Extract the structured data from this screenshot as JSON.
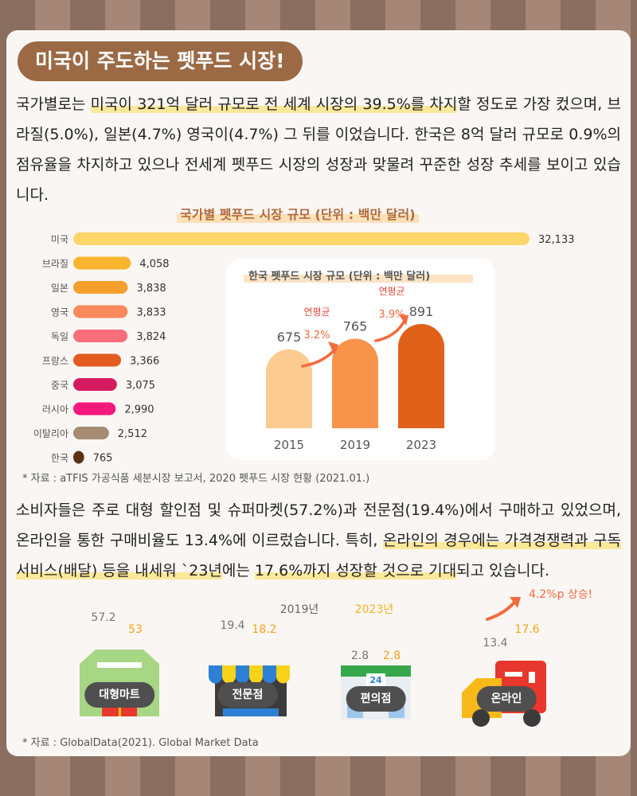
{
  "headline": "미국이 주도하는 펫푸드 시장!",
  "intro": {
    "s1": "국가별로는 ",
    "h1": "미국이 321억 달러 규모로 전 세계 시장의 39.5%를 차지",
    "s2": "할 정도로 가장 컸으며, 브라질(5.0%), 일본(4.7%) 영국이(4.7%) 그 뒤를 이었습니다. 한국은 8억 달러 규모로 0.9%의 점유율을 차지하고 있으나 전세계 펫푸드 시장의 성장과 맞물려 꾸준한 성장 추세를 보이고 있습니다."
  },
  "chart_data": [
    {
      "type": "bar",
      "orientation": "horizontal",
      "title": "국가별 펫푸드 시장 규모 (단위 : 백만 달러)",
      "categories": [
        "미국",
        "브라질",
        "일본",
        "영국",
        "독일",
        "프랑스",
        "중국",
        "러시아",
        "이탈리아",
        "한국"
      ],
      "values": [
        32133,
        4058,
        3838,
        3833,
        3824,
        3366,
        3075,
        2990,
        2512,
        765
      ],
      "value_labels": [
        "32,133",
        "4,058",
        "3,838",
        "3,833",
        "3,824",
        "3,366",
        "3,075",
        "2,990",
        "2,512",
        "765"
      ],
      "colors": [
        "#fdd56b",
        "#f9b52e",
        "#f5a02c",
        "#fb8a5c",
        "#f76e7a",
        "#e35b1f",
        "#d41b5d",
        "#f5197d",
        "#a58c72",
        "#5a3212"
      ]
    },
    {
      "type": "bar",
      "title": "한국 펫푸드 시장 규모 (단위 : 백만 달러)",
      "categories": [
        "2015",
        "2019",
        "2023"
      ],
      "values": [
        675,
        765,
        891
      ],
      "colors": [
        "#fccb92",
        "#f7944a",
        "#e0611a"
      ],
      "annotations": [
        {
          "label": "연평균",
          "value": "3.2%"
        },
        {
          "label": "연평균",
          "value": "3.9%"
        }
      ]
    },
    {
      "type": "bar",
      "title": "",
      "categories": [
        "대형마트",
        "전문점",
        "편의점",
        "온라인"
      ],
      "series": [
        {
          "name": "2019년",
          "values": [
            57.2,
            19.4,
            2.8,
            13.4
          ],
          "labels": [
            "57.2",
            "19.4",
            "2.8",
            "13.4"
          ],
          "color": "#c8c8c8"
        },
        {
          "name": "2023년",
          "values": [
            53,
            18.2,
            2.8,
            17.6
          ],
          "labels": [
            "53",
            "18.2",
            "2.8",
            "17.6"
          ],
          "color": "#f9d21a"
        }
      ],
      "annotation": "4.2%p 상승!"
    }
  ],
  "source1": "* 자료 : aTFIS 가공식품 세분시장 보고서, 2020 펫푸드 시장 현황 (2021.01.)",
  "para2": {
    "s1": "소비자들은 주로 대형 할인점 및 슈퍼마켓(57.2%)과 전문점(19.4%)에서 구매하고 있었으며, 온라인을 통한 구매비율도 13.4%에 이르렀습니다. 특히, ",
    "h1": "온라인의 경우에는 가격경쟁력과 구독 서비스(배달) 등을 내세워 `23년",
    "s2": "에는 ",
    "h2": "17.6%까지 성장할 것으로 기대",
    "s3": "되고 있습니다."
  },
  "store_sign": "24",
  "source2": "* 자료 : GlobalData(2021). Global Market Data"
}
